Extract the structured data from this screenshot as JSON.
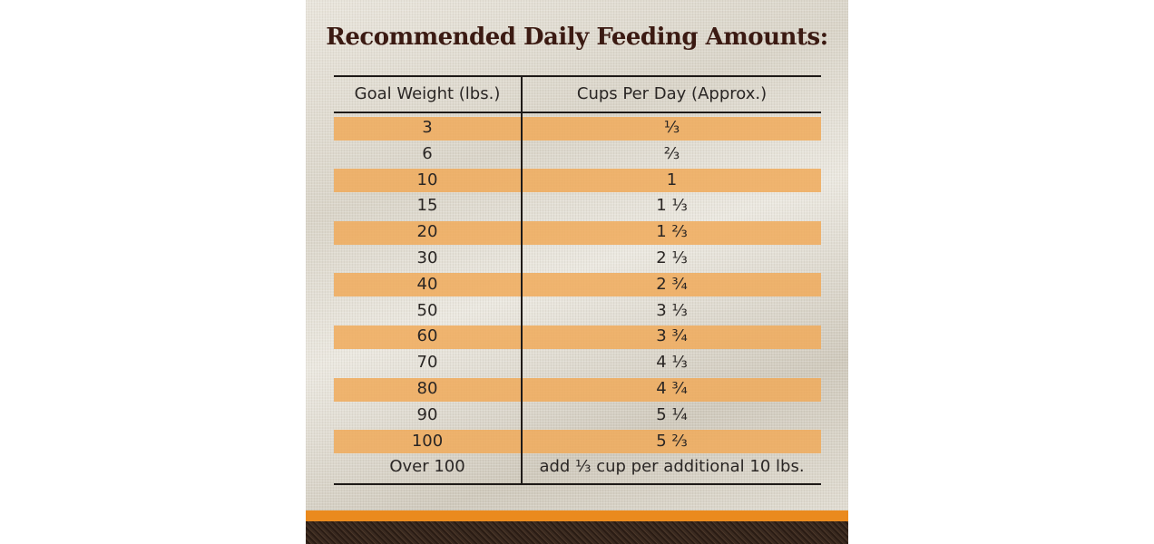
{
  "title": "Recommended Daily Feeding Amounts:",
  "table": {
    "header": [
      "Goal Weight (lbs.)",
      "Cups Per Day (Approx.)"
    ],
    "rows": [
      [
        "3",
        "⅓"
      ],
      [
        "6",
        "⅔"
      ],
      [
        "10",
        "1"
      ],
      [
        "15",
        "1 ⅓"
      ],
      [
        "20",
        "1 ⅔"
      ],
      [
        "30",
        "2 ⅓"
      ],
      [
        "40",
        "2 ¾"
      ],
      [
        "50",
        "3 ⅓"
      ],
      [
        "60",
        "3 ¾"
      ],
      [
        "70",
        "4 ⅓"
      ],
      [
        "80",
        "4 ¾"
      ],
      [
        "90",
        "5 ¼"
      ],
      [
        "100",
        "5 ⅔"
      ],
      [
        "Over 100",
        "add ⅓ cup per additional 10 lbs."
      ]
    ]
  }
}
